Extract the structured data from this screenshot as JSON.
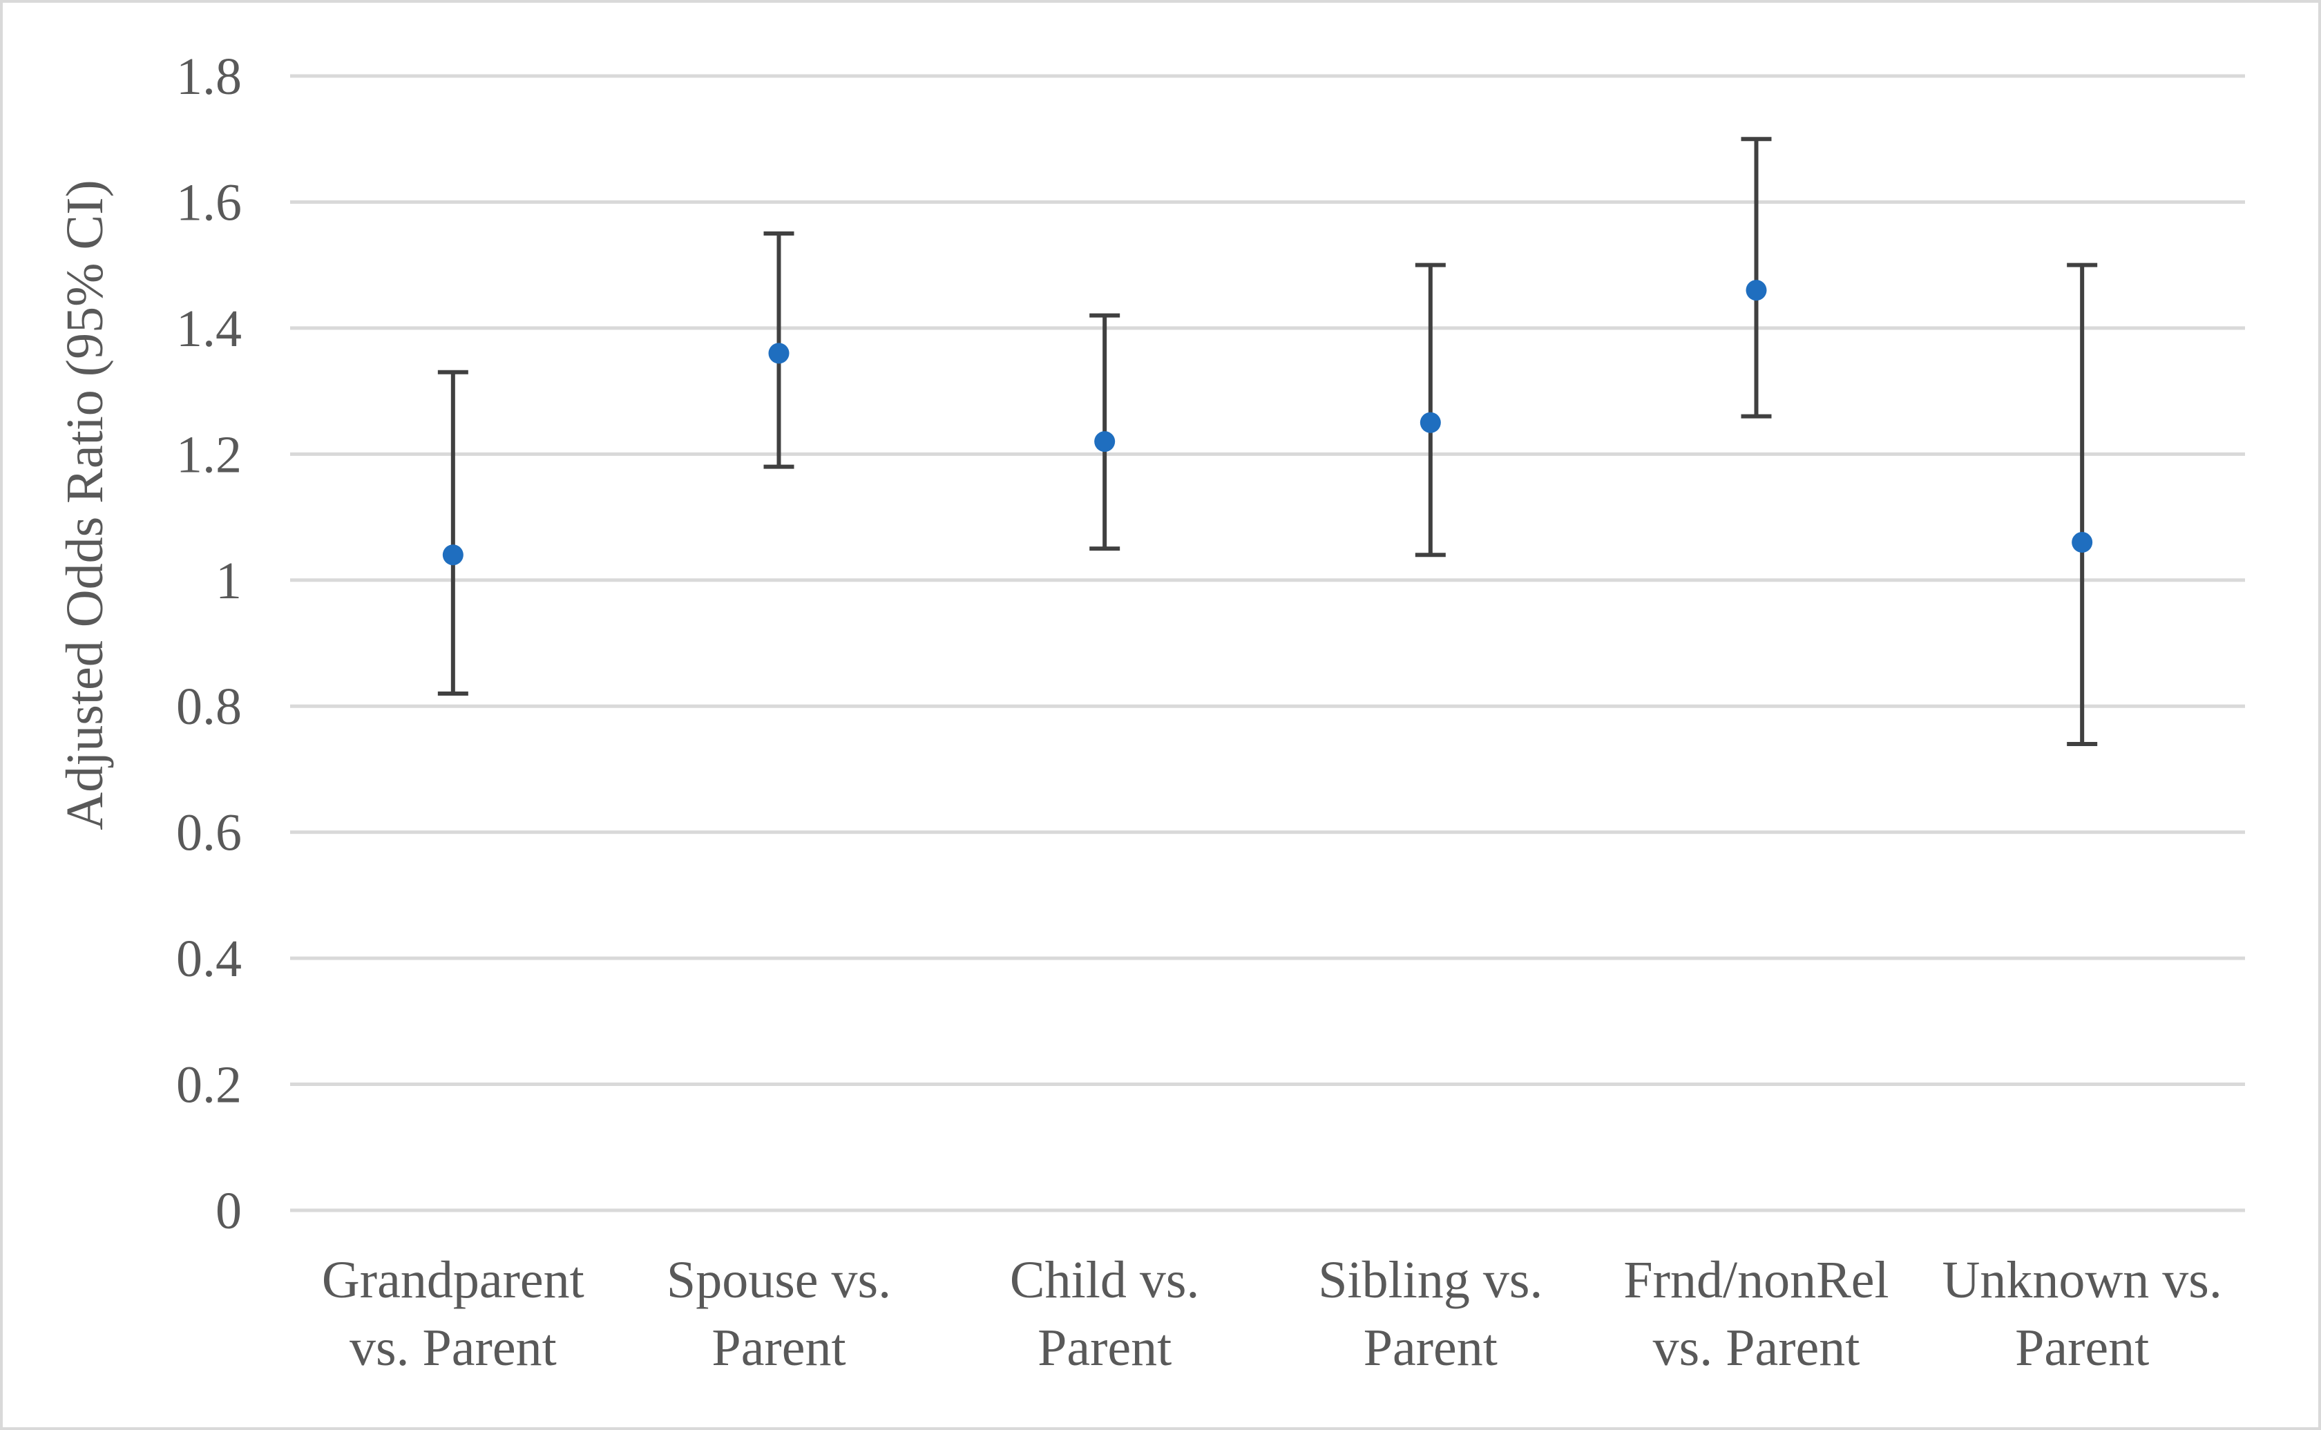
{
  "chart_data": {
    "type": "scatter",
    "title": "",
    "xlabel": "",
    "ylabel": "Adjusted Odds Ratio (95% CI)",
    "ylim": [
      0,
      1.8
    ],
    "y_ticks": [
      "0",
      "0.2",
      "0.4",
      "0.6",
      "0.8",
      "1",
      "1.2",
      "1.4",
      "1.6",
      "1.8"
    ],
    "y_tick_values": [
      0,
      0.2,
      0.4,
      0.6,
      0.8,
      1.0,
      1.2,
      1.4,
      1.6,
      1.8
    ],
    "grid": true,
    "legend": "none",
    "categories": [
      [
        "Grandparent",
        "vs. Parent"
      ],
      [
        "Spouse vs.",
        "Parent"
      ],
      [
        "Child vs.",
        "Parent"
      ],
      [
        "Sibling vs.",
        "Parent"
      ],
      [
        "Frnd/nonRel",
        "vs. Parent"
      ],
      [
        "Unknown vs.",
        "Parent"
      ]
    ],
    "values": [
      1.04,
      1.36,
      1.22,
      1.25,
      1.46,
      1.06
    ],
    "ci_lower": [
      0.82,
      1.18,
      1.05,
      1.04,
      1.26,
      0.74
    ],
    "ci_upper": [
      1.33,
      1.55,
      1.42,
      1.5,
      1.7,
      1.5
    ],
    "colors": {
      "marker": "#1f6ebf",
      "error_bar": "#404040",
      "gridline": "#d9d9d9",
      "frame": "#d9d9d9",
      "text": "#595959"
    }
  }
}
